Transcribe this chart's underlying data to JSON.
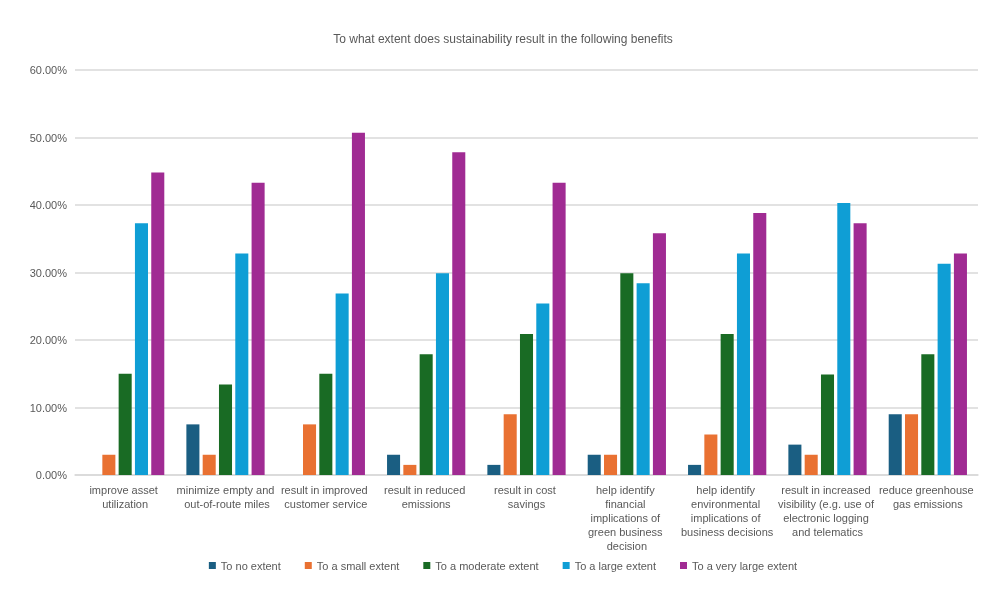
{
  "chart_data": {
    "type": "bar",
    "title": "To what extent does sustainability result in the following benefits",
    "categories": [
      "improve asset utilization",
      "minimize empty and out-of-route miles",
      "result in improved customer service",
      "result in reduced emissions",
      "result in cost savings",
      "help identify financial implications of green business decision",
      "help identify environmental implications of business decisions",
      "result in increased visibility (e.g. use of electronic logging and telematics",
      "reduce greenhouse gas emissions"
    ],
    "series": [
      {
        "name": "To no extent",
        "color": "#1a5e82",
        "values": [
          0,
          7.5,
          0,
          3,
          1.5,
          3,
          1.5,
          4.5,
          9
        ]
      },
      {
        "name": "To a small extent",
        "color": "#e97132",
        "values": [
          3,
          3,
          7.5,
          1.5,
          9,
          3,
          6,
          3,
          9
        ]
      },
      {
        "name": "To a moderate extent",
        "color": "#196b24",
        "values": [
          15,
          13.4,
          15,
          17.9,
          20.9,
          29.9,
          20.9,
          14.9,
          17.9
        ]
      },
      {
        "name": "To a large extent",
        "color": "#0f9ed5",
        "values": [
          37.3,
          32.8,
          26.9,
          29.9,
          25.4,
          28.4,
          32.8,
          40.3,
          31.3
        ]
      },
      {
        "name": "To a very large extent",
        "color": "#a02b93",
        "values": [
          44.8,
          43.3,
          50.7,
          47.8,
          43.3,
          35.8,
          38.8,
          37.3,
          32.8
        ]
      }
    ],
    "ylim": [
      0,
      60
    ],
    "yticks": [
      {
        "value": 0,
        "label": "0.00%"
      },
      {
        "value": 10,
        "label": "10.00%"
      },
      {
        "value": 20,
        "label": "20.00%"
      },
      {
        "value": 30,
        "label": "30.00%"
      },
      {
        "value": 40,
        "label": "40.00%"
      },
      {
        "value": 50,
        "label": "50.00%"
      },
      {
        "value": 60,
        "label": "60.00%"
      }
    ],
    "grid": "y",
    "legend": "bottom"
  }
}
